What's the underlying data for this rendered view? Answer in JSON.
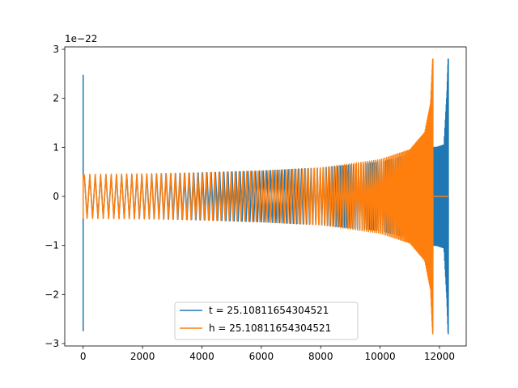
{
  "chart_data": {
    "type": "line",
    "title": "",
    "xlabel": "",
    "ylabel": "",
    "offset_text": "1e−22",
    "xlim": [
      -620,
      12900
    ],
    "ylim": [
      -3.05,
      3.05
    ],
    "xticks": [
      0,
      2000,
      4000,
      6000,
      8000,
      10000,
      12000
    ],
    "xtick_labels": [
      "0",
      "2000",
      "4000",
      "6000",
      "8000",
      "10000",
      "12000"
    ],
    "yticks": [
      -3,
      -2,
      -1,
      0,
      1,
      2,
      3
    ],
    "ytick_labels": [
      "−3",
      "−2",
      "−1",
      "0",
      "1",
      "2",
      "3"
    ],
    "grid": false,
    "legend_position": "lower center",
    "series": [
      {
        "name": "t = 25.10811654304521",
        "color": "#1f77b4",
        "start_spike": {
          "x": 0,
          "ymin": -2.75,
          "ymax": 2.48
        },
        "envelope": [
          [
            0,
            0.42
          ],
          [
            2000,
            0.45
          ],
          [
            4000,
            0.48
          ],
          [
            6000,
            0.52
          ],
          [
            8000,
            0.58
          ],
          [
            10000,
            0.7
          ],
          [
            11000,
            0.85
          ],
          [
            11600,
            1.0
          ],
          [
            11900,
            1.0
          ],
          [
            12150,
            1.05
          ],
          [
            12250,
            2.1
          ],
          [
            12290,
            2.8
          ]
        ],
        "end_x": 12300,
        "end_min": -2.45
      },
      {
        "name": "h = 25.10811654304521",
        "color": "#ff7f0e",
        "start_spike": {
          "x": 0,
          "ymin": -0.45,
          "ymax": 0.45
        },
        "envelope": [
          [
            0,
            0.45
          ],
          [
            2000,
            0.46
          ],
          [
            4000,
            0.48
          ],
          [
            6000,
            0.52
          ],
          [
            8000,
            0.58
          ],
          [
            10000,
            0.75
          ],
          [
            11000,
            0.95
          ],
          [
            11500,
            1.3
          ],
          [
            11700,
            1.9
          ],
          [
            11770,
            2.8
          ]
        ],
        "end_x": 11780,
        "end_min": -2.75,
        "tail_to": 12300
      }
    ]
  }
}
